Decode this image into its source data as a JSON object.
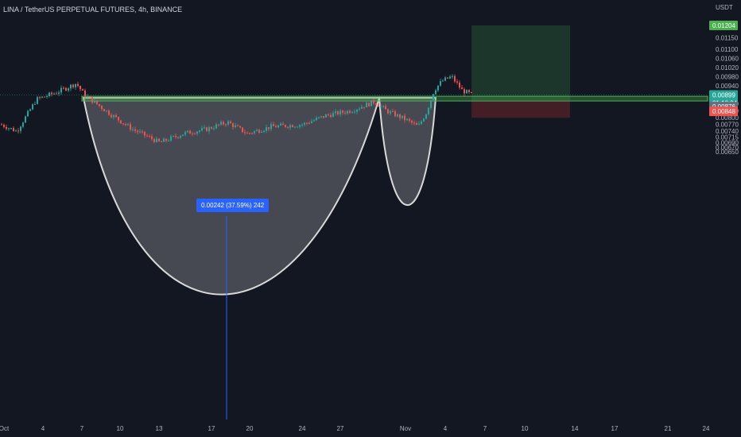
{
  "header": {
    "title": "LINA / TetherUS PERPETUAL FUTURES, 4h, BINANCE",
    "unit": "USDT"
  },
  "measure": {
    "label": "0.00242 (37.59%) 242"
  },
  "price_tags": {
    "target": "0.01204",
    "current": "0.00899",
    "countdown": "01:10:04",
    "entry": "0.00876",
    "stop": "0.00848"
  },
  "colors": {
    "background": "#131722",
    "up": "#26a69a",
    "down": "#ef5350",
    "target_zone": "#1e3a2c",
    "stop_zone": "#4a1f28",
    "measure": "#2962ff",
    "pattern_fill": "#50525a",
    "resistance_line": "#4caf50"
  },
  "chart_data": {
    "type": "candlestick",
    "title": "LINA / TetherUS PERPETUAL FUTURES, 4h, BINANCE",
    "y_unit": "USDT",
    "y_ticks": [
      "0.01150",
      "0.01100",
      "0.01060",
      "0.01020",
      "0.00980",
      "0.00940",
      "0.00860",
      "0.00830",
      "0.00800",
      "0.00770",
      "0.00740",
      "0.00715",
      "0.00690",
      "0.00670",
      "0.00650"
    ],
    "x_ticks": [
      "Oct",
      "4",
      "7",
      "10",
      "13",
      "17",
      "20",
      "24",
      "27",
      "Nov",
      "4",
      "7",
      "10",
      "14",
      "17",
      "21",
      "24"
    ],
    "price_range": [
      0.00637,
      0.01225
    ],
    "approx_close_path": [
      {
        "x": "Oct",
        "price": 0.0077
      },
      {
        "x": "4",
        "price": 0.0088
      },
      {
        "x": "6",
        "price": 0.0095
      },
      {
        "x": "7",
        "price": 0.0088
      },
      {
        "x": "10",
        "price": 0.0079
      },
      {
        "x": "13",
        "price": 0.0071
      },
      {
        "x": "17",
        "price": 0.0076
      },
      {
        "x": "20",
        "price": 0.0074
      },
      {
        "x": "24",
        "price": 0.0077
      },
      {
        "x": "27",
        "price": 0.0083
      },
      {
        "x": "29",
        "price": 0.0087
      },
      {
        "x": "Nov",
        "price": 0.0081
      },
      {
        "x": "2",
        "price": 0.0076
      },
      {
        "x": "3",
        "price": 0.0093
      },
      {
        "x": "4",
        "price": 0.0096
      },
      {
        "x": "5",
        "price": 0.009
      }
    ],
    "levels": {
      "target": 0.01204,
      "current": 0.00899,
      "entry": 0.00876,
      "stop": 0.00848
    },
    "pattern": "cup and handle",
    "measured_move": {
      "value": 0.00242,
      "percent": 37.59,
      "bars": 242
    }
  }
}
